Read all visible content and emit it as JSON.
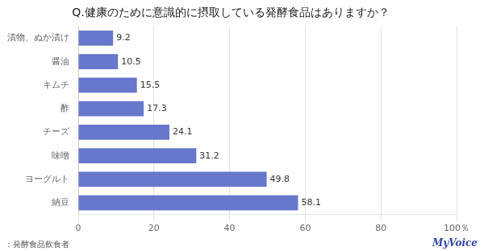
{
  "chart_data": {
    "type": "bar",
    "orientation": "horizontal",
    "title": "Q.健康のために意識的に摂取している発酵食品はありますか？",
    "categories": [
      "漬物、ぬか漬け",
      "醤油",
      "キムチ",
      "酢",
      "チーズ",
      "味噌",
      "ヨーグルト",
      "納豆"
    ],
    "values": [
      9.2,
      10.5,
      15.5,
      17.3,
      24.1,
      31.2,
      49.8,
      58.1
    ],
    "color": "#6677cc",
    "xlim": [
      0,
      100
    ],
    "xticks": [
      0,
      20,
      40,
      60,
      80,
      {
        "value": 100,
        "label": "100％"
      }
    ],
    "grid": true,
    "data_labels": true,
    "annotations": [
      "：発酵食品飲食者",
      "MyVoice"
    ]
  }
}
